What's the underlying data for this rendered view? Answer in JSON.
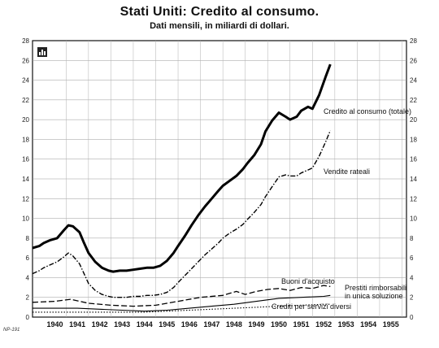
{
  "header": {
    "title": "Stati Uniti: Credito al consumo.",
    "subtitle": "Dati mensili, in miliardi di dollari."
  },
  "footer": {
    "code": "NP-191"
  },
  "chart_data": {
    "type": "line",
    "title": "Stati Uniti: Credito al consumo.",
    "subtitle": "Dati mensili, in miliardi di dollari.",
    "xlabel": "",
    "ylabel": "",
    "xlim": [
      1939.5,
      1956.2
    ],
    "ylim": [
      0,
      28
    ],
    "yticks": [
      0,
      2,
      4,
      6,
      8,
      10,
      12,
      14,
      16,
      18,
      20,
      22,
      24,
      26,
      28
    ],
    "xticks": [
      "1940",
      "1941",
      "1942",
      "1943",
      "1944",
      "1945",
      "1946",
      "1947",
      "1948",
      "1949",
      "1950",
      "1951",
      "1952",
      "1953",
      "1954",
      "1955"
    ],
    "grid": true,
    "axes": "left-and-right",
    "series": [
      {
        "name": "Credito al consumo (totale)",
        "style": "solid-thick",
        "x": [
          1939.5,
          1939.8,
          1940.0,
          1940.3,
          1940.6,
          1940.9,
          1941.1,
          1941.3,
          1941.6,
          1941.8,
          1942.0,
          1942.3,
          1942.6,
          1942.9,
          1943.1,
          1943.4,
          1943.7,
          1944.0,
          1944.3,
          1944.6,
          1944.9,
          1945.2,
          1945.5,
          1945.8,
          1946.0,
          1946.3,
          1946.6,
          1946.9,
          1947.2,
          1947.5,
          1947.8,
          1948.0,
          1948.3,
          1948.6,
          1948.9,
          1949.1,
          1949.4,
          1949.7,
          1949.9,
          1950.2,
          1950.5,
          1950.8,
          1951.0,
          1951.3,
          1951.5,
          1951.8,
          1952.0,
          1952.3,
          1952.6,
          1952.8
        ],
        "y": [
          7.0,
          7.2,
          7.5,
          7.8,
          8.0,
          8.8,
          9.3,
          9.2,
          8.6,
          7.5,
          6.5,
          5.6,
          5.0,
          4.7,
          4.6,
          4.7,
          4.7,
          4.8,
          4.9,
          5.0,
          5.0,
          5.2,
          5.7,
          6.5,
          7.2,
          8.2,
          9.3,
          10.3,
          11.2,
          12.0,
          12.8,
          13.3,
          13.8,
          14.3,
          15.0,
          15.6,
          16.4,
          17.5,
          18.8,
          19.9,
          20.7,
          20.3,
          20.0,
          20.3,
          20.9,
          21.3,
          21.1,
          22.5,
          24.4,
          25.6
        ]
      },
      {
        "name": "Vendite rateali",
        "style": "dash-dot",
        "x": [
          1939.5,
          1939.8,
          1940.0,
          1940.3,
          1940.6,
          1940.9,
          1941.1,
          1941.3,
          1941.6,
          1941.8,
          1942.0,
          1942.3,
          1942.6,
          1942.9,
          1943.1,
          1943.4,
          1943.7,
          1944.0,
          1944.3,
          1944.6,
          1944.9,
          1945.2,
          1945.5,
          1945.8,
          1946.0,
          1946.3,
          1946.6,
          1946.9,
          1947.2,
          1947.5,
          1947.8,
          1948.0,
          1948.3,
          1948.6,
          1948.9,
          1949.1,
          1949.4,
          1949.7,
          1949.9,
          1950.2,
          1950.5,
          1950.8,
          1951.0,
          1951.3,
          1951.5,
          1951.8,
          1952.0,
          1952.3,
          1952.6,
          1952.8
        ],
        "y": [
          4.4,
          4.7,
          5.0,
          5.3,
          5.6,
          6.1,
          6.5,
          6.2,
          5.4,
          4.4,
          3.4,
          2.7,
          2.3,
          2.1,
          2.0,
          2.0,
          2.0,
          2.1,
          2.1,
          2.2,
          2.2,
          2.3,
          2.5,
          3.0,
          3.5,
          4.2,
          4.9,
          5.6,
          6.3,
          6.9,
          7.5,
          8.0,
          8.5,
          8.9,
          9.4,
          9.9,
          10.6,
          11.4,
          12.2,
          13.2,
          14.2,
          14.4,
          14.3,
          14.3,
          14.6,
          14.9,
          15.1,
          16.3,
          17.8,
          18.9
        ]
      },
      {
        "name": "Buoni d'acquisto",
        "style": "long-dash",
        "x": [
          1939.5,
          1940.5,
          1941.2,
          1942.0,
          1943.0,
          1944.0,
          1945.0,
          1946.0,
          1947.0,
          1948.0,
          1948.6,
          1949.0,
          1949.5,
          1950.0,
          1950.5,
          1951.0,
          1951.5,
          1952.0,
          1952.5,
          1952.8
        ],
        "y": [
          1.5,
          1.6,
          1.8,
          1.4,
          1.2,
          1.1,
          1.2,
          1.6,
          2.0,
          2.2,
          2.6,
          2.3,
          2.6,
          2.8,
          2.9,
          2.7,
          3.0,
          2.9,
          3.2,
          3.1
        ]
      },
      {
        "name": "Prestiti rimborsabili in unica soluzione",
        "style": "solid-thin",
        "x": [
          1939.5,
          1940.5,
          1941.5,
          1942.5,
          1943.5,
          1944.5,
          1945.5,
          1946.5,
          1947.5,
          1948.5,
          1949.5,
          1950.5,
          1951.5,
          1952.5,
          1952.8
        ],
        "y": [
          0.9,
          0.9,
          0.9,
          0.8,
          0.7,
          0.6,
          0.7,
          0.9,
          1.1,
          1.3,
          1.6,
          1.9,
          2.0,
          2.1,
          2.2
        ]
      },
      {
        "name": "Crediti per servizi diversi",
        "style": "dotted",
        "x": [
          1939.5,
          1940.5,
          1941.5,
          1942.5,
          1943.5,
          1944.5,
          1945.5,
          1946.5,
          1947.5,
          1948.5,
          1949.5,
          1950.5,
          1951.5,
          1952.5,
          1952.8
        ],
        "y": [
          0.5,
          0.5,
          0.5,
          0.5,
          0.5,
          0.5,
          0.6,
          0.7,
          0.8,
          0.9,
          1.0,
          1.1,
          1.2,
          1.3,
          1.3
        ]
      }
    ]
  }
}
